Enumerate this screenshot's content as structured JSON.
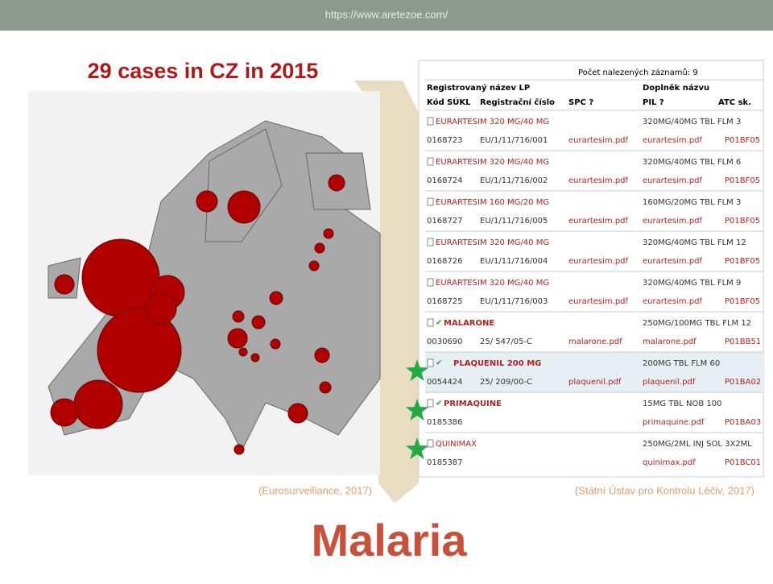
{
  "header": {
    "url": "https://www.aretezoe.com/"
  },
  "map": {
    "title": "29 cases in CZ in 2015",
    "source": "(Eurosurveillance, 2017)"
  },
  "table": {
    "count_label": "Počet nalezených záznamů: 9",
    "headers": {
      "name": "Registrovaný název LP",
      "supplement": "Doplněk názvu",
      "code": "Kód SÚKL",
      "reg": "Registrační číslo",
      "spc": "SPC ?",
      "pil": "PIL ?",
      "atc": "ATC sk."
    },
    "rows": [
      {
        "name": "EURARTESIM 320 MG/40 MG",
        "supplement": "320MG/40MG TBL FLM 3",
        "code": "0168723",
        "reg": "EU/1/11/716/001",
        "spc": "eurartesim.pdf",
        "pil": "eurartesim.pdf",
        "atc": "P01BF05"
      },
      {
        "name": "EURARTESIM 320 MG/40 MG",
        "supplement": "320MG/40MG TBL FLM 6",
        "code": "0168724",
        "reg": "EU/1/11/716/002",
        "spc": "eurartesim.pdf",
        "pil": "eurartesim.pdf",
        "atc": "P01BF05"
      },
      {
        "name": "EURARTESIM 160 MG/20 MG",
        "supplement": "160MG/20MG TBL FLM 3",
        "code": "0168727",
        "reg": "EU/1/11/716/005",
        "spc": "eurartesim.pdf",
        "pil": "eurartesim.pdf",
        "atc": "P01BF05"
      },
      {
        "name": "EURARTESIM 320 MG/40 MG",
        "supplement": "320MG/40MG TBL FLM 12",
        "code": "0168726",
        "reg": "EU/1/11/716/004",
        "spc": "eurartesim.pdf",
        "pil": "eurartesim.pdf",
        "atc": "P01BF05"
      },
      {
        "name": "EURARTESIM 320 MG/40 MG",
        "supplement": "320MG/40MG TBL FLM 9",
        "code": "0168725",
        "reg": "EU/1/11/716/003",
        "spc": "eurartesim.pdf",
        "pil": "eurartesim.pdf",
        "atc": "P01BF05"
      },
      {
        "name": "MALARONE",
        "supplement": "250MG/100MG TBL FLM 12",
        "code": "0030690",
        "reg": "25/ 547/05-C",
        "spc": "malarone.pdf",
        "pil": "malarone.pdf",
        "atc": "P01BB51"
      },
      {
        "name": "PLAQUENIL 200 MG",
        "supplement": "200MG TBL FLM 60",
        "code": "0054424",
        "reg": "25/ 209/00-C",
        "spc": "plaquenil.pdf",
        "pil": "plaquenil.pdf",
        "atc": "P01BA02"
      },
      {
        "name": "PRIMAQUINE",
        "supplement": "15MG TBL NOB 100",
        "code": "0185386",
        "pil": "primaquine.pdf",
        "atc": "P01BA03"
      },
      {
        "name": "QUINIMAX",
        "supplement": "250MG/2ML INJ SOL 3X2ML",
        "code": "0185387",
        "pil": "quinimax.pdf",
        "atc": "P01BC01"
      }
    ],
    "source": "(Státní Ústav pro Kontrolu Léčiv, 2017)"
  },
  "title": "Malaria"
}
